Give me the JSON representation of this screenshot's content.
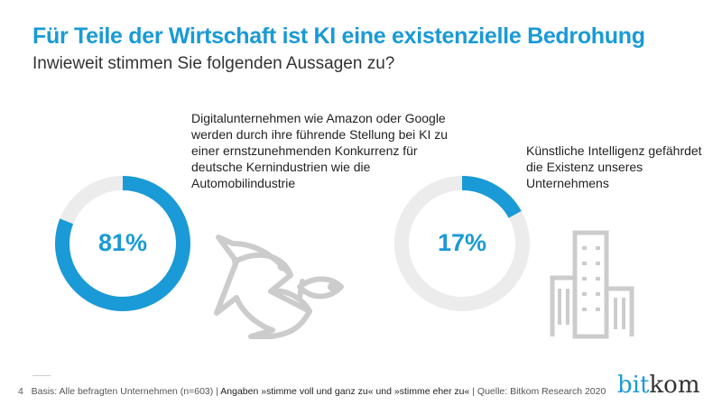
{
  "title": "Für Teile der Wirtschaft ist KI eine existenzielle Bedrohung",
  "subtitle": "Inwieweit stimmen Sie folgenden Aussagen zu?",
  "chart_data": [
    {
      "type": "pie",
      "variant": "donut",
      "statement": "Digitalunternehmen wie Amazon oder Google werden durch ihre führende Stellung bei KI zu einer ernstzunehmenden Konkurrenz für deutsche Kernindustrien wie die Automobilindustrie",
      "value": 81,
      "label": "81%",
      "icon": "big-fish-eats-small-fish-icon"
    },
    {
      "type": "pie",
      "variant": "donut",
      "statement": "Künstliche Intelligenz gefährdet die Existenz unseres Unternehmens",
      "value": 17,
      "label": "17%",
      "icon": "building-icon"
    }
  ],
  "colors": {
    "accent": "#1a9ad6",
    "track": "#ececec",
    "icon": "#cccccc"
  },
  "footer": {
    "page": "4",
    "basis": "Basis: Alle befragten Unternehmen (n=603) |",
    "angaben": "Angaben »stimme voll und ganz zu« und »stimme eher zu«",
    "source": "| Quelle: Bitkom Research 2020"
  },
  "logo": {
    "text_a": "bit",
    "text_b": "kom"
  }
}
